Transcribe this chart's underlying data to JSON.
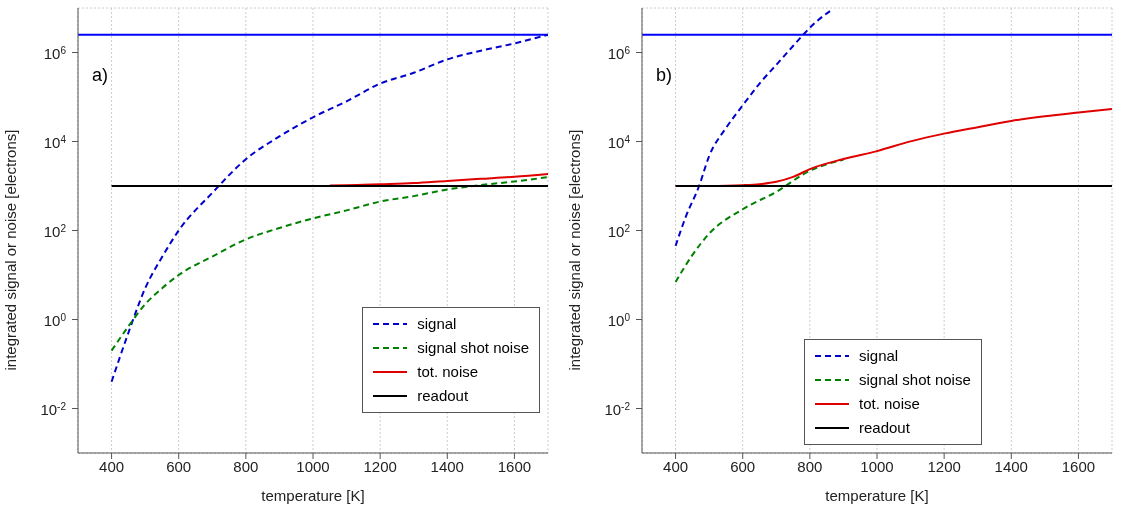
{
  "chart_data": [
    {
      "type": "line",
      "xlabel": "temperature [K]",
      "ylabel": "integrated signal or noise [electrons]",
      "annotations": [
        "a)"
      ],
      "log": "y",
      "grid": true,
      "legend": "bottom right",
      "xlim": [
        300,
        1700
      ],
      "xticks": [
        400,
        600,
        800,
        1000,
        1200,
        1400,
        1600
      ],
      "ylim": [
        0.001,
        10000000
      ],
      "yticks": [
        {
          "value": 0.01,
          "label": "10$^{-2}$"
        },
        {
          "value": 1,
          "label": "10$^{0}$"
        },
        {
          "value": 100,
          "label": "10$^{2}$"
        },
        {
          "value": 10000,
          "label": "10$^{4}$"
        },
        {
          "value": 1000000,
          "label": "10$^{6}$"
        }
      ],
      "ref_lines": [
        {
          "axis": "y",
          "value": 2500000,
          "color": "#0000ff",
          "line_style": "solid"
        }
      ],
      "series": [
        {
          "name": "signal",
          "color": "#0000cc",
          "line_style": "dashed",
          "x": [
            400,
            450,
            500,
            550,
            600,
            700,
            800,
            900,
            1000,
            1100,
            1200,
            1300,
            1400,
            1500,
            1600,
            1700
          ],
          "values": [
            0.04,
            0.5,
            5,
            25,
            100,
            700,
            4000,
            13000,
            35000,
            80000,
            200000,
            350000,
            700000,
            1100000,
            1600000,
            2500000
          ]
        },
        {
          "name": "signal shot noise",
          "color": "#008000",
          "line_style": "dashed",
          "x": [
            400,
            450,
            500,
            550,
            600,
            700,
            800,
            900,
            1000,
            1100,
            1200,
            1300,
            1400,
            1500,
            1600,
            1700
          ],
          "values": [
            0.2,
            0.7,
            2.2,
            5,
            10,
            26,
            63,
            114,
            187,
            283,
            447,
            592,
            837,
            1050,
            1265,
            1580
          ]
        },
        {
          "name": "tot. noise",
          "color": "#e00000",
          "line_style": "solid",
          "x": [
            1050,
            1100,
            1200,
            1300,
            1400,
            1500,
            1600,
            1700
          ],
          "values": [
            1027,
            1039,
            1095,
            1162,
            1303,
            1450,
            1614,
            1870
          ]
        },
        {
          "name": "readout",
          "color": "#000000",
          "line_style": "solid",
          "x": [
            400,
            1700
          ],
          "values": [
            1000,
            1000
          ]
        }
      ]
    },
    {
      "type": "line",
      "xlabel": "temperature [K]",
      "ylabel": "integrated signal or noise [electrons]",
      "annotations": [
        "b)"
      ],
      "log": "y",
      "grid": true,
      "legend": "bottom",
      "xlim": [
        300,
        1700
      ],
      "xticks": [
        400,
        600,
        800,
        1000,
        1200,
        1400,
        1600
      ],
      "ylim": [
        0.001,
        10000000
      ],
      "yticks": [
        {
          "value": 0.01,
          "label": "10$^{-2}$"
        },
        {
          "value": 1,
          "label": "10$^{0}$"
        },
        {
          "value": 100,
          "label": "10$^{2}$"
        },
        {
          "value": 10000,
          "label": "10$^{4}$"
        },
        {
          "value": 1000000,
          "label": "10$^{6}$"
        }
      ],
      "ref_lines": [
        {
          "axis": "y",
          "value": 2500000,
          "color": "#0000ff",
          "line_style": "solid"
        }
      ],
      "series": [
        {
          "name": "signal",
          "color": "#0000cc",
          "line_style": "dashed",
          "x": [
            400,
            430,
            470,
            500,
            550,
            600,
            650,
            700,
            750,
            780,
            820,
            860
          ],
          "values": [
            45,
            200,
            1000,
            4700,
            20000,
            65000,
            200000,
            530000,
            1400000,
            2500000,
            5000000,
            8500000
          ]
        },
        {
          "name": "signal shot noise",
          "color": "#008000",
          "line_style": "dashed",
          "x": [
            400,
            450,
            500,
            600,
            700,
            800,
            900
          ],
          "values": [
            7,
            28,
            85,
            300,
            740,
            2200,
            3900
          ]
        },
        {
          "name": "tot. noise",
          "color": "#e00000",
          "line_style": "solid",
          "x": [
            400,
            500,
            600,
            650,
            700,
            750,
            800,
            900,
            1000,
            1100,
            1200,
            1300,
            1400,
            1500,
            1600,
            1700
          ],
          "values": [
            1000,
            1004,
            1044,
            1100,
            1244,
            1600,
            2400,
            4030,
            6080,
            10050,
            15030,
            21020,
            29020,
            37010,
            45010,
            54010
          ]
        },
        {
          "name": "readout",
          "color": "#000000",
          "line_style": "solid",
          "x": [
            400,
            1700
          ],
          "values": [
            1000,
            1000
          ]
        }
      ]
    }
  ]
}
